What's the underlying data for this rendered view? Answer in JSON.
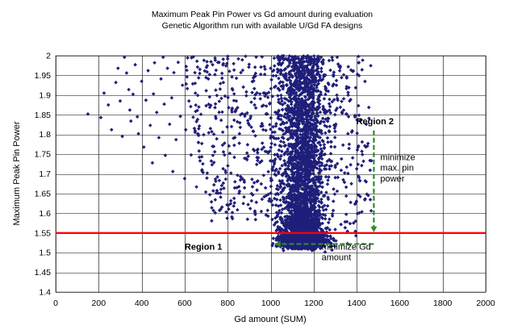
{
  "chart_data": {
    "type": "scatter",
    "title": [
      "Maximum Peak Pin Power vs Gd amount during evaluation",
      "Genetic Algorithm run with available U/Gd FA designs"
    ],
    "xlabel": "Gd amount (SUM)",
    "ylabel": "Maximum Peak Pin Power",
    "xlim": [
      0,
      2000
    ],
    "ylim": [
      1.4,
      2.0
    ],
    "xticks": [
      0,
      200,
      400,
      600,
      800,
      1000,
      1200,
      1400,
      1600,
      1800,
      2000
    ],
    "yticks": [
      1.4,
      1.45,
      1.5,
      1.55,
      1.6,
      1.65,
      1.7,
      1.75,
      1.8,
      1.85,
      1.9,
      1.95,
      2.0
    ],
    "grid": true,
    "legend": "none",
    "series_color": "#1f1f7a",
    "reference_line": {
      "y": 1.55,
      "color": "#ff0000"
    },
    "arrow_color": "#2e8b2e",
    "arrows": [
      {
        "from": [
          1480,
          1.81
        ],
        "to": [
          1480,
          1.552
        ]
      },
      {
        "from": [
          1480,
          1.522
        ],
        "to": [
          1020,
          1.522
        ]
      }
    ],
    "annotations": [
      {
        "text": "Region 2",
        "x": 1398,
        "y": 1.826,
        "bold": true
      },
      {
        "text": "Region 1",
        "x": 600,
        "y": 1.508,
        "bold": true
      },
      {
        "text": "minimize",
        "x": 1510,
        "y": 1.735
      },
      {
        "text": "max. pin",
        "x": 1510,
        "y": 1.708
      },
      {
        "text": "power",
        "x": 1510,
        "y": 1.681
      },
      {
        "text": "minimize Gd",
        "x": 1237,
        "y": 1.508
      },
      {
        "text": "amount",
        "x": 1237,
        "y": 1.481
      }
    ],
    "series": [
      {
        "points": [
          [
            150,
            1.852
          ],
          [
            210,
            1.843
          ],
          [
            225,
            1.905
          ],
          [
            245,
            1.875
          ],
          [
            260,
            1.812
          ],
          [
            280,
            1.932
          ],
          [
            290,
            1.968
          ],
          [
            300,
            1.885
          ],
          [
            310,
            1.795
          ],
          [
            320,
            1.996
          ],
          [
            330,
            1.956
          ],
          [
            340,
            1.914
          ],
          [
            345,
            1.862
          ],
          [
            350,
            1.834
          ],
          [
            360,
            1.902
          ],
          [
            370,
            1.977
          ],
          [
            380,
            1.845
          ],
          [
            385,
            1.802
          ],
          [
            400,
            1.935
          ],
          [
            410,
            1.768
          ],
          [
            420,
            1.887
          ],
          [
            430,
            1.962
          ],
          [
            440,
            1.823
          ],
          [
            450,
            1.728
          ],
          [
            455,
            1.903
          ],
          [
            460,
            1.982
          ],
          [
            470,
            1.856
          ],
          [
            480,
            1.792
          ],
          [
            490,
            1.941
          ],
          [
            500,
            1.996
          ],
          [
            505,
            1.877
          ],
          [
            510,
            1.747
          ],
          [
            520,
            1.968
          ],
          [
            530,
            1.826
          ],
          [
            540,
            1.893
          ],
          [
            545,
            1.706
          ],
          [
            550,
            1.957
          ],
          [
            560,
            1.787
          ],
          [
            570,
            1.983
          ],
          [
            580,
            1.846
          ],
          [
            590,
            1.925
          ],
          [
            600,
            1.688
          ],
          [
            605,
            1.812
          ],
          [
            610,
            1.963
          ],
          [
            620,
            1.885
          ],
          [
            630,
            1.748
          ],
          [
            640,
            1.997
          ],
          [
            650,
            1.905
          ],
          [
            655,
            1.667
          ],
          [
            660,
            1.838
          ],
          [
            670,
            1.955
          ],
          [
            680,
            1.777
          ],
          [
            690,
            1.988
          ],
          [
            700,
            1.873
          ],
          [
            705,
            1.702
          ],
          [
            710,
            1.941
          ],
          [
            720,
            1.815
          ],
          [
            730,
            1.977
          ],
          [
            740,
            1.756
          ],
          [
            750,
            1.899
          ],
          [
            755,
            1.651
          ],
          [
            760,
            1.983
          ],
          [
            770,
            1.836
          ],
          [
            780,
            1.932
          ],
          [
            790,
            1.708
          ],
          [
            800,
            1.992
          ],
          [
            805,
            1.868
          ],
          [
            810,
            1.752
          ],
          [
            820,
            1.946
          ],
          [
            830,
            1.638
          ],
          [
            840,
            1.885
          ],
          [
            850,
            1.992
          ],
          [
            855,
            1.802
          ],
          [
            860,
            1.693
          ],
          [
            870,
            1.963
          ],
          [
            880,
            1.851
          ],
          [
            890,
            1.736
          ],
          [
            900,
            1.978
          ],
          [
            905,
            1.612
          ],
          [
            910,
            1.882
          ],
          [
            920,
            1.762
          ],
          [
            930,
            1.955
          ],
          [
            940,
            1.682
          ],
          [
            950,
            1.903
          ],
          [
            955,
            1.821
          ],
          [
            960,
            1.997
          ],
          [
            970,
            1.642
          ],
          [
            980,
            1.872
          ],
          [
            990,
            1.755
          ],
          [
            1000,
            1.968
          ]
        ]
      }
    ]
  }
}
